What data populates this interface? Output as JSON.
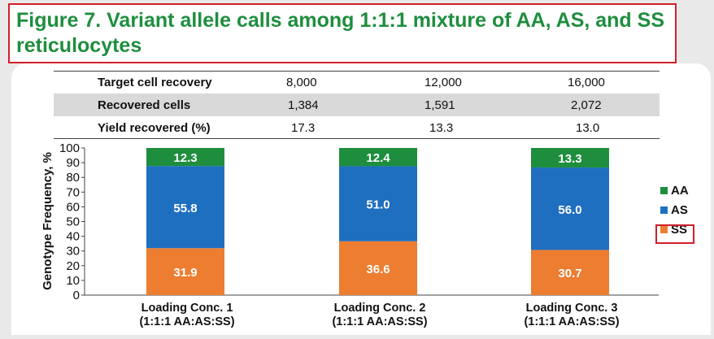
{
  "title": "Figure 7. Variant allele calls among 1:1:1 mixture of AA, AS, and SS reticulocytes",
  "table": {
    "rows": [
      {
        "label": "Target cell recovery",
        "values": [
          "8,000",
          "12,000",
          "16,000"
        ]
      },
      {
        "label": "Recovered cells",
        "values": [
          "1,384",
          "1,591",
          "2,072"
        ]
      },
      {
        "label": "Yield recovered (%)",
        "values": [
          "17.3",
          "13.3",
          "13.0"
        ]
      }
    ]
  },
  "chart_data": {
    "type": "bar",
    "stacked": true,
    "categories": [
      "Loading Conc. 1\n(1:1:1 AA:AS:SS)",
      "Loading Conc. 2\n(1:1:1 AA:AS:SS)",
      "Loading Conc. 3\n(1:1:1 AA:AS:SS)"
    ],
    "series": [
      {
        "name": "SS",
        "values": [
          31.9,
          36.6,
          30.7
        ],
        "color": "#ed7d31"
      },
      {
        "name": "AS",
        "values": [
          55.8,
          51.0,
          56.0
        ],
        "color": "#1f6fc0"
      },
      {
        "name": "AA",
        "values": [
          12.3,
          12.4,
          13.3
        ],
        "color": "#1e8e3e"
      }
    ],
    "ylabel": "Genotype Frequency, %",
    "ylim": [
      0,
      100
    ],
    "yticks": [
      0,
      10,
      20,
      30,
      40,
      50,
      60,
      70,
      80,
      90,
      100
    ],
    "legend": "right",
    "highlighted_legend_entry": "SS"
  }
}
